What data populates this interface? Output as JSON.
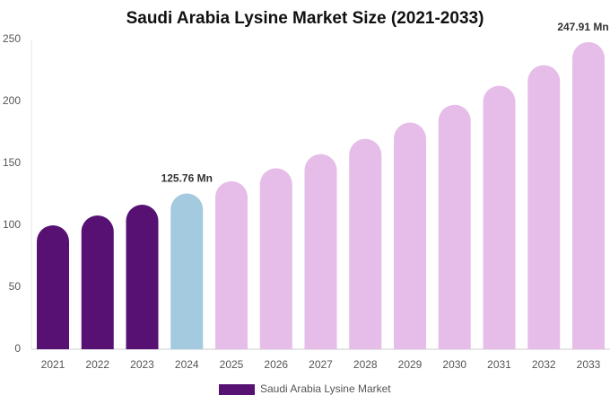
{
  "chart_data": {
    "type": "bar",
    "title": "Saudi Arabia Lysine Market Size (2021-2033)",
    "categories": [
      "2021",
      "2022",
      "2023",
      "2024",
      "2025",
      "2026",
      "2027",
      "2028",
      "2029",
      "2030",
      "2031",
      "2032",
      "2033"
    ],
    "series": [
      {
        "name": "Saudi Arabia Lysine Market",
        "color": "#561172",
        "values": [
          100,
          108,
          116.7,
          125.76,
          135.6,
          146.1,
          157.5,
          169.8,
          183,
          197.3,
          212.7,
          229.3,
          247.91
        ],
        "value_labels": [
          null,
          null,
          null,
          "125.76 Mn",
          null,
          null,
          null,
          null,
          null,
          null,
          null,
          null,
          "247.91 Mn"
        ]
      }
    ],
    "bar_colors": [
      "#561172",
      "#561172",
      "#561172",
      "#a3cade",
      "#e6bde8",
      "#e6bde8",
      "#e6bde8",
      "#e6bde8",
      "#e6bde8",
      "#e6bde8",
      "#e6bde8",
      "#e6bde8",
      "#e6bde8"
    ],
    "ylim": [
      0,
      250
    ],
    "yticks": [
      0,
      50,
      100,
      150,
      200,
      250
    ],
    "grid": false
  }
}
